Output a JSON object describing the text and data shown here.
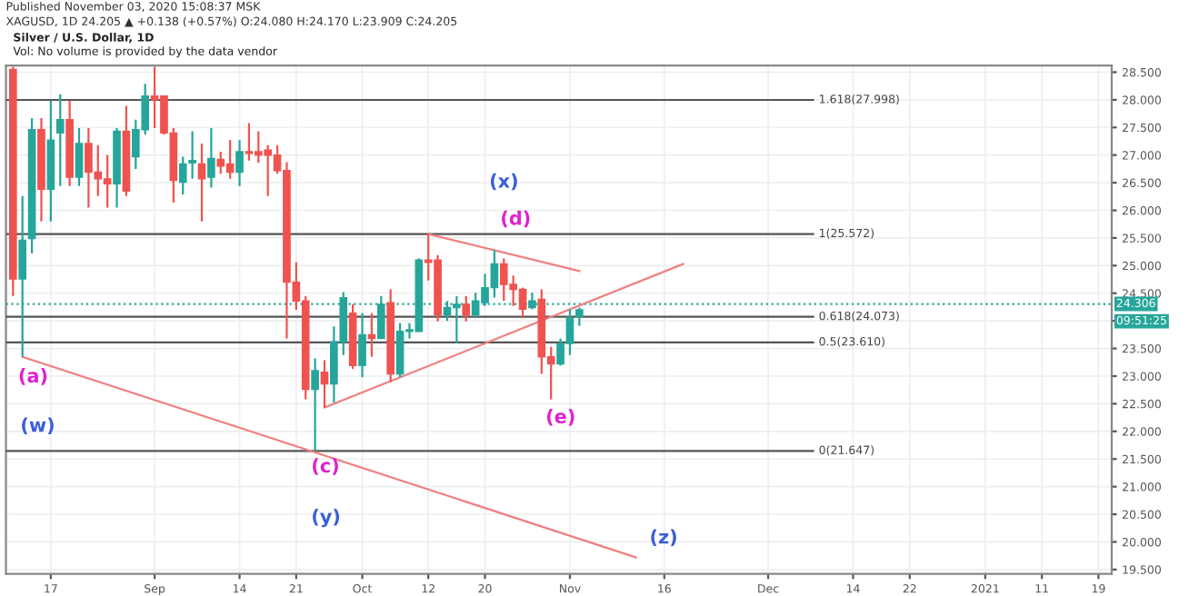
{
  "chart_data": {
    "type": "candlestick",
    "title": "Silver / U.S. Dollar, 1D",
    "annotations": [
      "Published November 03, 2020 15:08:37 MSK",
      "XAGUSD, 1D 24.205 ▲ +0.138 (+0.57%) O:24.080 H:24.170 L:23.909 C:24.205",
      "Vol: No volume is provided by the data vendor",
      "09:51:25",
      "(x)",
      "(d)",
      "(a)",
      "(w)",
      "(c)",
      "(y)",
      "(e)",
      "(z)"
    ],
    "categories": [
      null,
      null,
      null,
      null,
      "17",
      null,
      null,
      null,
      null,
      null,
      null,
      null,
      null,
      null,
      null,
      "Sep",
      null,
      null,
      null,
      null,
      null,
      null,
      null,
      null,
      "14",
      null,
      null,
      null,
      null,
      null,
      "21",
      null,
      null,
      null,
      null,
      null,
      null,
      "Oct",
      null,
      null,
      null,
      null,
      null,
      null,
      "12",
      null,
      null,
      null,
      null,
      null,
      "20",
      null,
      null,
      null,
      null,
      null,
      null,
      null,
      null,
      "Nov",
      null,
      null,
      null,
      null,
      null,
      null,
      null,
      null,
      null,
      "16",
      null,
      null,
      null,
      null,
      null,
      null,
      null,
      null,
      null,
      null,
      "Dec",
      null,
      null,
      null,
      null,
      null,
      null,
      null,
      null,
      "14",
      null,
      null,
      null,
      null,
      null,
      "22",
      null,
      null,
      null,
      null,
      null,
      null,
      null,
      "2021",
      null,
      null,
      null,
      null,
      null,
      "11",
      null,
      null,
      null,
      null,
      null,
      "19",
      null
    ],
    "ohlc": [
      [
        28.55,
        28.6,
        24.45,
        24.76
      ],
      [
        24.76,
        26.26,
        23.35,
        25.46
      ],
      [
        25.49,
        27.67,
        25.22,
        27.46
      ],
      [
        27.46,
        27.67,
        25.8,
        26.38
      ],
      [
        26.38,
        27.98,
        25.8,
        27.27
      ],
      [
        27.4,
        28.1,
        26.44,
        27.64
      ],
      [
        27.64,
        27.98,
        26.44,
        26.6
      ],
      [
        26.6,
        27.49,
        26.44,
        27.21
      ],
      [
        27.21,
        27.49,
        26.05,
        26.69
      ],
      [
        26.69,
        27.18,
        26.26,
        26.57
      ],
      [
        26.57,
        27.0,
        26.05,
        26.48
      ],
      [
        26.48,
        27.49,
        26.05,
        27.43
      ],
      [
        27.43,
        27.89,
        26.26,
        26.35
      ],
      [
        26.97,
        27.64,
        26.75,
        27.46
      ],
      [
        27.46,
        28.29,
        27.37,
        28.07
      ],
      [
        28.07,
        28.6,
        27.49,
        28.0
      ],
      [
        28.07,
        28.07,
        27.37,
        27.4
      ],
      [
        27.4,
        27.49,
        26.14,
        26.54
      ],
      [
        26.51,
        26.97,
        26.29,
        26.84
      ],
      [
        26.86,
        27.43,
        26.57,
        26.9
      ],
      [
        26.84,
        27.21,
        25.8,
        26.57
      ],
      [
        26.6,
        27.49,
        26.41,
        26.94
      ],
      [
        26.92,
        27.06,
        26.66,
        26.8
      ],
      [
        26.84,
        27.27,
        26.57,
        26.69
      ],
      [
        26.69,
        27.27,
        26.44,
        27.06
      ],
      [
        27.06,
        27.58,
        26.9,
        27.03
      ],
      [
        27.06,
        27.43,
        26.86,
        27.0
      ],
      [
        27.09,
        27.18,
        26.26,
        27.0
      ],
      [
        27.0,
        27.18,
        26.66,
        26.72
      ],
      [
        26.72,
        26.87,
        23.68,
        24.7
      ],
      [
        24.7,
        25.06,
        24.2,
        24.36
      ],
      [
        24.36,
        24.45,
        22.58,
        22.76
      ],
      [
        22.76,
        23.32,
        21.65,
        23.1
      ],
      [
        23.07,
        23.29,
        22.43,
        22.86
      ],
      [
        22.86,
        23.9,
        22.52,
        23.62
      ],
      [
        23.62,
        24.52,
        23.38,
        24.42
      ],
      [
        24.14,
        24.3,
        23.13,
        23.19
      ],
      [
        23.19,
        24.14,
        22.98,
        23.75
      ],
      [
        23.75,
        24.14,
        23.35,
        23.68
      ],
      [
        23.68,
        24.45,
        23.68,
        24.3
      ],
      [
        24.33,
        24.57,
        22.89,
        23.04
      ],
      [
        23.04,
        23.96,
        22.98,
        23.81
      ],
      [
        23.81,
        23.96,
        23.68,
        23.84
      ],
      [
        23.81,
        25.13,
        23.8,
        25.1
      ],
      [
        25.1,
        25.57,
        24.73,
        25.06
      ],
      [
        25.1,
        25.19,
        23.99,
        24.11
      ],
      [
        24.11,
        24.36,
        24.0,
        24.24
      ],
      [
        24.24,
        24.45,
        23.59,
        24.3
      ],
      [
        24.3,
        24.45,
        23.99,
        24.11
      ],
      [
        24.11,
        24.51,
        24.05,
        24.36
      ],
      [
        24.33,
        24.85,
        24.27,
        24.6
      ],
      [
        24.6,
        25.28,
        24.42,
        25.03
      ],
      [
        25.03,
        25.13,
        24.36,
        24.66
      ],
      [
        24.66,
        24.82,
        24.27,
        24.57
      ],
      [
        24.57,
        24.6,
        24.05,
        24.21
      ],
      [
        24.24,
        24.51,
        24.21,
        24.36
      ],
      [
        24.39,
        24.57,
        23.04,
        23.35
      ],
      [
        23.35,
        23.53,
        22.58,
        23.22
      ],
      [
        23.22,
        23.68,
        23.19,
        23.59
      ],
      [
        23.59,
        24.21,
        23.38,
        24.05
      ],
      [
        24.08,
        24.24,
        23.91,
        24.2
      ],
      null,
      null,
      null,
      null,
      null,
      null,
      null,
      null,
      null,
      null,
      null,
      null,
      null,
      null,
      null,
      null,
      null,
      null,
      null,
      null,
      null,
      null,
      null,
      null,
      null,
      null,
      null,
      null,
      null,
      null,
      null,
      null,
      null,
      null,
      null,
      null,
      null,
      null,
      null,
      null,
      null,
      null,
      null,
      null,
      null,
      null,
      null,
      null,
      null,
      null,
      null,
      null,
      null,
      null,
      null,
      null
    ],
    "colors": [
      "#ef5350",
      "#26a69a",
      "#26a69a",
      "#ef5350",
      "#26a69a",
      "#26a69a",
      "#ef5350",
      "#26a69a",
      "#ef5350",
      "#ef5350",
      "#ef5350",
      "#26a69a",
      "#ef5350",
      "#26a69a",
      "#26a69a",
      "#ef5350",
      "#ef5350",
      "#ef5350",
      "#26a69a",
      "#26a69a",
      "#ef5350",
      "#26a69a",
      "#ef5350",
      "#ef5350",
      "#26a69a",
      "#ef5350",
      "#ef5350",
      "#ef5350",
      "#ef5350",
      "#ef5350",
      "#ef5350",
      "#ef5350",
      "#26a69a",
      "#ef5350",
      "#26a69a",
      "#26a69a",
      "#ef5350",
      "#26a69a",
      "#ef5350",
      "#26a69a",
      "#ef5350",
      "#26a69a",
      "#26a69a",
      "#26a69a",
      "#ef5350",
      "#ef5350",
      "#26a69a",
      "#26a69a",
      "#ef5350",
      "#26a69a",
      "#26a69a",
      "#26a69a",
      "#ef5350",
      "#ef5350",
      "#ef5350",
      "#26a69a",
      "#ef5350",
      "#ef5350",
      "#26a69a",
      "#26a69a",
      "#26a69a",
      null,
      null,
      null,
      null,
      null,
      null,
      null,
      null,
      null,
      null,
      null,
      null,
      null,
      null,
      null,
      null,
      null,
      null,
      null,
      null,
      null,
      null,
      null,
      null,
      null,
      null,
      null,
      null,
      null,
      null,
      null,
      null,
      null,
      null,
      null,
      null,
      null,
      null,
      null,
      null,
      null,
      null,
      null,
      null,
      null,
      null,
      null,
      null,
      null,
      null,
      null,
      null,
      null,
      null,
      null,
      null
    ],
    "series": [
      {
        "type": "line",
        "color": "#f08080",
        "values": [
          null,
          23.35,
          null,
          null,
          null,
          null,
          null,
          null,
          null,
          null,
          null,
          null,
          null,
          null,
          null,
          null,
          null,
          null,
          null,
          null,
          null,
          null,
          null,
          null,
          null,
          null,
          null,
          null,
          null,
          null,
          null,
          null,
          null,
          null,
          null,
          null,
          null,
          null,
          null,
          null,
          null,
          null,
          null,
          null,
          null,
          null,
          null,
          null,
          null,
          null,
          null,
          null,
          null,
          null,
          null,
          null,
          null,
          null,
          null,
          null,
          null,
          null,
          null,
          null,
          null,
          null,
          19.72,
          null,
          null,
          null,
          null,
          null,
          null,
          null,
          null,
          null,
          null,
          null,
          null,
          null,
          null,
          null,
          null,
          null,
          null,
          null,
          null,
          null,
          null,
          null,
          null,
          null,
          null,
          null,
          null,
          null,
          null,
          null,
          null,
          null,
          null,
          null,
          null,
          null,
          null,
          null,
          null,
          null,
          null,
          null,
          null,
          null,
          null,
          null,
          null,
          null,
          null
        ]
      },
      {
        "type": "line",
        "color": "#f08080",
        "values": [
          null,
          null,
          null,
          null,
          null,
          null,
          null,
          null,
          null,
          null,
          null,
          null,
          null,
          null,
          null,
          null,
          null,
          null,
          null,
          null,
          null,
          null,
          null,
          null,
          null,
          null,
          null,
          null,
          null,
          null,
          null,
          null,
          null,
          null,
          null,
          null,
          null,
          null,
          null,
          null,
          null,
          null,
          null,
          null,
          25.57,
          null,
          null,
          null,
          null,
          null,
          null,
          null,
          null,
          null,
          null,
          null,
          null,
          null,
          null,
          null,
          24.9,
          null,
          null,
          null,
          null,
          null,
          null,
          null,
          null,
          null,
          null,
          null,
          null,
          null,
          null,
          null,
          null,
          null,
          null,
          null,
          null,
          null,
          null,
          null,
          null,
          null,
          null,
          null,
          null,
          null,
          null,
          null,
          null,
          null,
          null,
          null,
          null,
          null,
          null,
          null,
          null,
          null,
          null,
          null,
          null,
          null,
          null,
          null,
          null,
          null,
          null,
          null,
          null,
          null,
          null,
          null,
          null
        ]
      },
      {
        "type": "line",
        "color": "#f08080",
        "values": [
          null,
          null,
          null,
          null,
          null,
          null,
          null,
          null,
          null,
          null,
          null,
          null,
          null,
          null,
          null,
          null,
          null,
          null,
          null,
          null,
          null,
          null,
          null,
          null,
          null,
          null,
          null,
          null,
          null,
          null,
          null,
          null,
          null,
          22.43,
          null,
          null,
          null,
          null,
          null,
          null,
          null,
          null,
          null,
          null,
          null,
          null,
          null,
          null,
          null,
          null,
          null,
          null,
          null,
          null,
          null,
          null,
          null,
          null,
          null,
          null,
          null,
          null,
          null,
          null,
          null,
          null,
          null,
          null,
          null,
          null,
          null,
          25.03,
          null,
          null,
          null,
          null,
          null,
          null,
          null,
          null,
          null,
          null,
          null,
          null,
          null,
          null,
          null,
          null,
          null,
          null,
          null,
          null,
          null,
          null,
          null,
          null,
          null,
          null,
          null,
          null,
          null,
          null,
          null,
          null,
          null,
          null,
          null,
          null,
          null,
          null,
          null,
          null,
          null,
          null,
          null,
          null,
          null
        ]
      }
    ],
    "ref_lines": [
      {
        "axis": "y",
        "value": 27.998,
        "label": "1.618(27.998)",
        "color": "#555555",
        "line_style": "solid"
      },
      {
        "axis": "y",
        "value": 25.572,
        "label": "1(25.572)",
        "color": "#555555",
        "line_style": "solid"
      },
      {
        "axis": "y",
        "value": 24.073,
        "label": "0.618(24.073)",
        "color": "#555555",
        "line_style": "solid"
      },
      {
        "axis": "y",
        "value": 23.61,
        "label": "0.5(23.610)",
        "color": "#555555",
        "line_style": "solid"
      },
      {
        "axis": "y",
        "value": 21.647,
        "label": "0(21.647)",
        "color": "#555555",
        "line_style": "solid"
      },
      {
        "axis": "y",
        "value": 24.306,
        "label": "24.306",
        "color": "#26a69a",
        "line_style": "dotted"
      }
    ],
    "ylim": [
      19.42,
      28.62
    ],
    "yticks": [
      {
        "value": 19.5,
        "label": "19.500"
      },
      {
        "value": 20.0,
        "label": "20.000"
      },
      {
        "value": 20.5,
        "label": "20.500"
      },
      {
        "value": 21.0,
        "label": "21.000"
      },
      {
        "value": 21.5,
        "label": "21.500"
      },
      {
        "value": 22.0,
        "label": "22.000"
      },
      {
        "value": 22.5,
        "label": "22.500"
      },
      {
        "value": 23.0,
        "label": "23.000"
      },
      {
        "value": 23.5,
        "label": "23.500"
      },
      {
        "value": 24.0,
        "label": null
      },
      {
        "value": 24.5,
        "label": "24.500"
      },
      {
        "value": 25.0,
        "label": "25.000"
      },
      {
        "value": 25.5,
        "label": "25.500"
      },
      {
        "value": 26.0,
        "label": "26.000"
      },
      {
        "value": 26.5,
        "label": "26.500"
      },
      {
        "value": 27.0,
        "label": "27.000"
      },
      {
        "value": 27.5,
        "label": "27.500"
      },
      {
        "value": 28.0,
        "label": "28.000"
      },
      {
        "value": 28.5,
        "label": "28.500"
      }
    ],
    "grid": true
  }
}
